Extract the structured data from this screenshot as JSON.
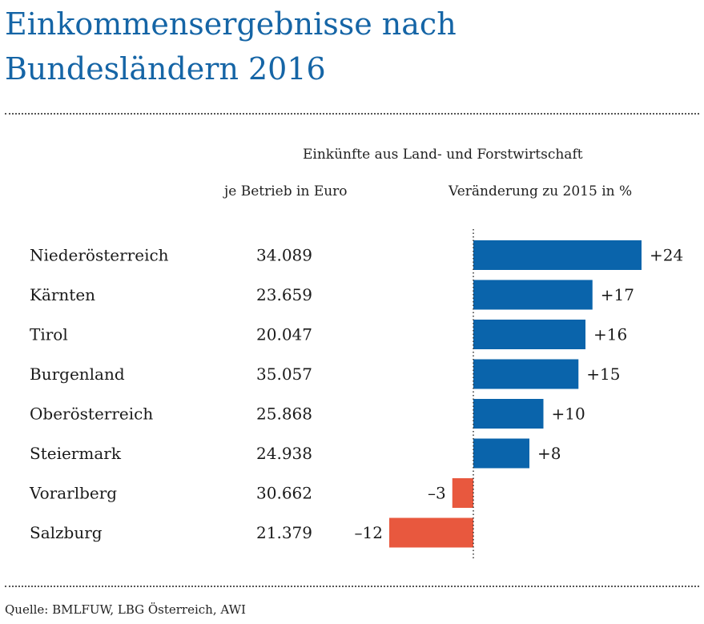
{
  "title": "Einkommensergebnisse nach\nBundesländern 2016",
  "header": {
    "group_label": "Einkünfte aus Land- und Forstwirtschaft",
    "col_value": "je Betrieb in Euro",
    "col_change": "Veränderung zu 2015 in %"
  },
  "source": "Quelle: BMLFUW, LBG Österreich, AWI",
  "colors": {
    "title": "#1565a6",
    "positive": "#0a64ab",
    "negative": "#e8583e"
  },
  "chart_data": {
    "type": "bar",
    "orientation": "horizontal",
    "categories": [
      "Niederösterreich",
      "Kärnten",
      "Tirol",
      "Burgenland",
      "Oberösterreich",
      "Steiermark",
      "Vorarlberg",
      "Salzburg"
    ],
    "income_per_farm": [
      "34.089",
      "23.659",
      "20.047",
      "35.057",
      "25.868",
      "24.938",
      "30.662",
      "21.379"
    ],
    "series": [
      {
        "values": [
          24,
          17,
          16,
          15,
          10,
          8,
          -3,
          -12
        ]
      }
    ],
    "value_labels": [
      "+24",
      "+17",
      "+16",
      "+15",
      "+10",
      "+8",
      "–3",
      "–12"
    ],
    "xlim": [
      -12,
      24
    ]
  }
}
